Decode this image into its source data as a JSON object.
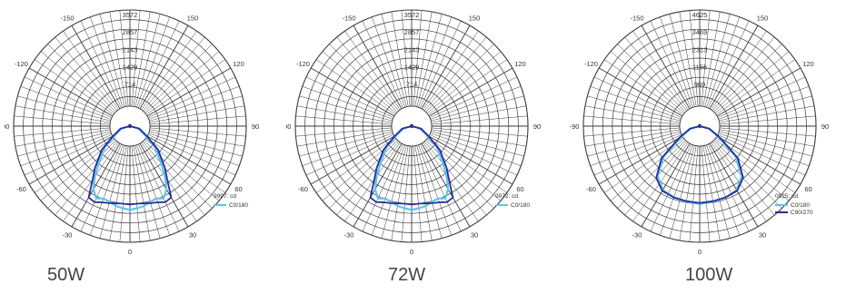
{
  "colors": {
    "grid": "#3a3a3a",
    "c0_180": "#5bc8e6",
    "c90_270": "#2a2a9e",
    "red_ref": "#cc3333"
  },
  "panels": [
    {
      "caption": "50W",
      "legend": {
        "unit": "9997: cd",
        "items": [
          "C0/180"
        ]
      }
    },
    {
      "caption": "72W",
      "legend": {
        "unit": "9972: cd",
        "items": [
          "C0/180"
        ]
      }
    },
    {
      "caption": "100W",
      "legend": {
        "unit": "0925: cd",
        "items": [
          "C0/180",
          "C90/270"
        ]
      }
    }
  ],
  "chart_data": [
    {
      "type": "polar",
      "title": "",
      "rmax": 3572,
      "ring_labels": [
        "3572",
        "2857",
        "2143",
        "1429",
        "714"
      ],
      "angle_labels": [
        "180",
        "150",
        "120",
        "90",
        "60",
        "30",
        "0",
        "-30",
        "-60",
        "-90",
        "-120",
        "-150"
      ],
      "series": [
        {
          "name": "C0/180",
          "angles": [
            -180,
            -150,
            -120,
            -90,
            -75,
            -60,
            -50,
            -40,
            -35,
            -30,
            -25,
            -20,
            -15,
            -10,
            -5,
            0,
            5,
            10,
            15,
            20,
            25,
            30,
            35,
            40,
            50,
            60,
            75,
            90,
            120,
            150,
            180
          ],
          "values": [
            0,
            0,
            0,
            0,
            200,
            500,
            1100,
            1700,
            2150,
            2600,
            2850,
            2750,
            2800,
            2900,
            2950,
            3000,
            2950,
            2900,
            2800,
            2750,
            2850,
            2600,
            2150,
            1700,
            1100,
            500,
            200,
            0,
            0,
            0,
            0
          ]
        },
        {
          "angles": [
            -180,
            -150,
            -120,
            -90,
            -75,
            -60,
            -50,
            -40,
            -35,
            -30,
            -25,
            -20,
            -15,
            -10,
            -5,
            0,
            5,
            10,
            15,
            20,
            25,
            30,
            35,
            40,
            50,
            60,
            75,
            90,
            120,
            150,
            180
          ],
          "values": [
            0,
            0,
            0,
            0,
            250,
            600,
            1250,
            1900,
            2300,
            2950,
            3000,
            2900,
            2850,
            2800,
            2780,
            2800,
            2780,
            2800,
            2850,
            2900,
            3000,
            2950,
            2300,
            1900,
            1250,
            600,
            250,
            0,
            0,
            0,
            0
          ]
        }
      ]
    },
    {
      "type": "polar",
      "title": "",
      "rmax": 3572,
      "ring_labels": [
        "3572",
        "2857",
        "2143",
        "1429",
        "714"
      ],
      "angle_labels": [
        "180",
        "150",
        "120",
        "90",
        "60",
        "30",
        "0",
        "-30",
        "-60",
        "-90",
        "-120",
        "-150"
      ],
      "series": [
        {
          "name": "C0/180",
          "angles": [
            -180,
            -150,
            -120,
            -90,
            -75,
            -60,
            -50,
            -40,
            -35,
            -30,
            -25,
            -20,
            -15,
            -10,
            -5,
            0,
            5,
            10,
            15,
            20,
            25,
            30,
            35,
            40,
            50,
            60,
            75,
            90,
            120,
            150,
            180
          ],
          "values": [
            0,
            0,
            0,
            0,
            200,
            500,
            1100,
            1700,
            2150,
            2600,
            2850,
            2750,
            2800,
            2900,
            2950,
            3000,
            2950,
            2900,
            2800,
            2750,
            2850,
            2600,
            2150,
            1700,
            1100,
            500,
            200,
            0,
            0,
            0,
            0
          ]
        },
        {
          "angles": [
            -180,
            -150,
            -120,
            -90,
            -75,
            -60,
            -50,
            -40,
            -35,
            -30,
            -25,
            -20,
            -15,
            -10,
            -5,
            0,
            5,
            10,
            15,
            20,
            25,
            30,
            35,
            40,
            50,
            60,
            75,
            90,
            120,
            150,
            180
          ],
          "values": [
            0,
            0,
            0,
            0,
            250,
            600,
            1250,
            1900,
            2300,
            2950,
            3000,
            2900,
            2850,
            2800,
            2780,
            2800,
            2780,
            2800,
            2850,
            2900,
            3000,
            2950,
            2300,
            1900,
            1250,
            600,
            250,
            0,
            0,
            0,
            0
          ]
        }
      ]
    },
    {
      "type": "polar",
      "title": "",
      "rmax": 4625,
      "ring_labels": [
        "4625",
        "3469",
        "2313",
        "1156",
        "969"
      ],
      "angle_labels": [
        "180",
        "150",
        "120",
        "90",
        "60",
        "30",
        "0",
        "-30",
        "-60",
        "-90",
        "-120",
        "-150"
      ],
      "series": [
        {
          "name": "C0/180",
          "angles": [
            -180,
            -150,
            -120,
            -90,
            -75,
            -60,
            -50,
            -40,
            -30,
            -20,
            -10,
            0,
            10,
            20,
            30,
            40,
            50,
            60,
            75,
            90,
            120,
            150,
            180
          ],
          "values": [
            0,
            0,
            0,
            0,
            300,
            900,
            2100,
            3000,
            3400,
            3500,
            3550,
            3600,
            3550,
            3500,
            3400,
            3000,
            2100,
            900,
            300,
            0,
            0,
            0,
            0
          ]
        },
        {
          "name": "C90/270",
          "angles": [
            -180,
            -150,
            -120,
            -90,
            -75,
            -60,
            -50,
            -40,
            -30,
            -20,
            -10,
            0,
            10,
            20,
            30,
            40,
            50,
            60,
            75,
            90,
            120,
            150,
            180
          ],
          "values": [
            0,
            0,
            0,
            0,
            350,
            1000,
            2250,
            3100,
            3450,
            3500,
            3520,
            3550,
            3520,
            3500,
            3450,
            3100,
            2250,
            1000,
            350,
            0,
            0,
            0,
            0
          ]
        }
      ]
    }
  ]
}
